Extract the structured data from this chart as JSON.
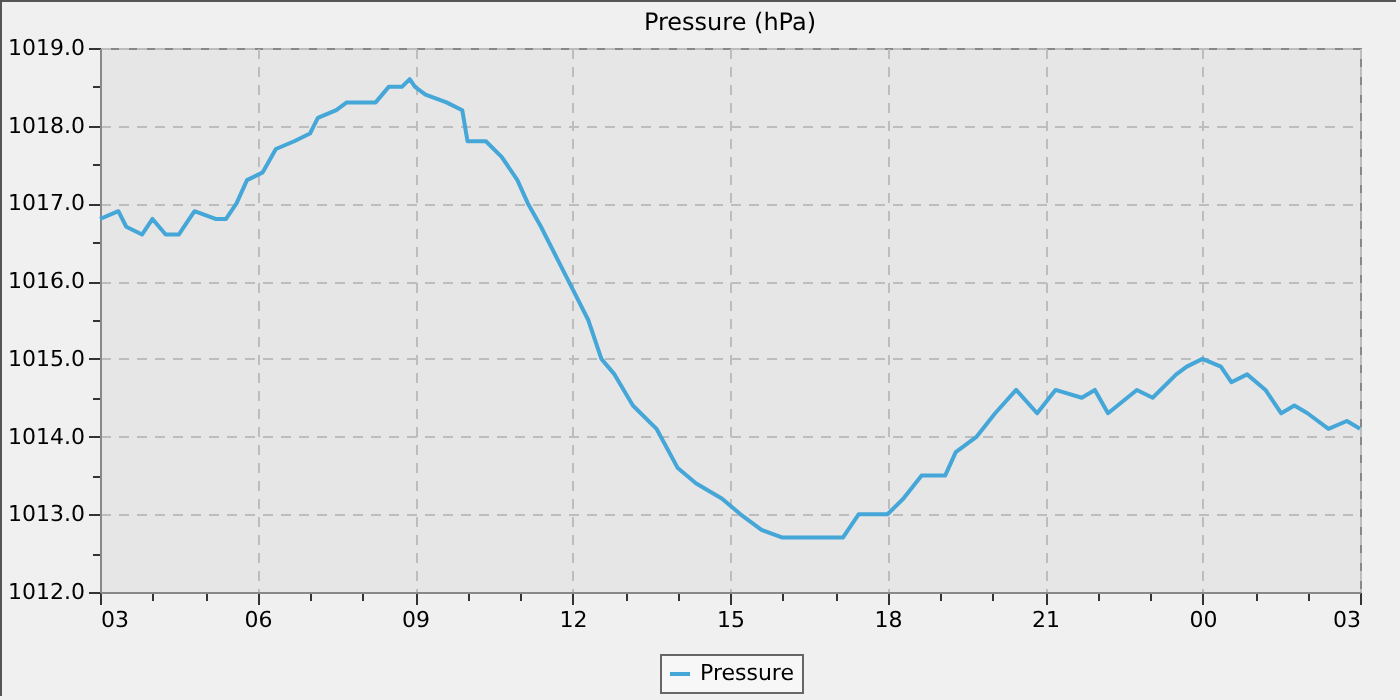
{
  "chart_data": {
    "type": "line",
    "title": "Pressure (hPa)",
    "grid": true,
    "legend": "bottom",
    "xlim": [
      3,
      27
    ],
    "ylim": [
      1012,
      1019
    ],
    "xticks": [
      {
        "value": 3,
        "label": "03"
      },
      {
        "value": 4,
        "label": null
      },
      {
        "value": 5,
        "label": null
      },
      {
        "value": 6,
        "label": "06"
      },
      {
        "value": 7,
        "label": null
      },
      {
        "value": 8,
        "label": null
      },
      {
        "value": 9,
        "label": "09"
      },
      {
        "value": 10,
        "label": null
      },
      {
        "value": 11,
        "label": null
      },
      {
        "value": 12,
        "label": "12"
      },
      {
        "value": 13,
        "label": null
      },
      {
        "value": 14,
        "label": null
      },
      {
        "value": 15,
        "label": "15"
      },
      {
        "value": 16,
        "label": null
      },
      {
        "value": 17,
        "label": null
      },
      {
        "value": 18,
        "label": "18"
      },
      {
        "value": 19,
        "label": null
      },
      {
        "value": 20,
        "label": null
      },
      {
        "value": 21,
        "label": "21"
      },
      {
        "value": 22,
        "label": null
      },
      {
        "value": 23,
        "label": null
      },
      {
        "value": 24,
        "label": "00"
      },
      {
        "value": 25,
        "label": null
      },
      {
        "value": 26,
        "label": null
      },
      {
        "value": 27,
        "label": "03"
      }
    ],
    "yticks": [
      {
        "value": 1012,
        "label": "1012.0"
      },
      {
        "value": 1012.5,
        "label": null
      },
      {
        "value": 1013,
        "label": "1013.0"
      },
      {
        "value": 1013.5,
        "label": null
      },
      {
        "value": 1014,
        "label": "1014.0"
      },
      {
        "value": 1014.5,
        "label": null
      },
      {
        "value": 1015,
        "label": "1015.0"
      },
      {
        "value": 1015.5,
        "label": null
      },
      {
        "value": 1016,
        "label": "1016.0"
      },
      {
        "value": 1016.5,
        "label": null
      },
      {
        "value": 1017,
        "label": "1017.0"
      },
      {
        "value": 1017.5,
        "label": null
      },
      {
        "value": 1018,
        "label": "1018.0"
      },
      {
        "value": 1018.5,
        "label": null
      },
      {
        "value": 1019,
        "label": "1019.0"
      }
    ],
    "x": [
      3,
      3.35,
      3.5,
      3.8,
      4.0,
      4.25,
      4.5,
      4.8,
      5.2,
      5.4,
      5.6,
      5.8,
      6.1,
      6.35,
      6.7,
      7.0,
      7.15,
      7.5,
      7.7,
      8.25,
      8.5,
      8.75,
      8.9,
      9.0,
      9.2,
      9.6,
      9.9,
      10.0,
      10.35,
      10.65,
      10.95,
      11.15,
      11.4,
      11.7,
      12.0,
      12.3,
      12.55,
      12.8,
      13.15,
      13.6,
      14.0,
      14.35,
      14.85,
      15.2,
      15.6,
      16.0,
      16.7,
      17.15,
      17.45,
      18.0,
      18.3,
      18.65,
      19.1,
      19.3,
      19.7,
      20.05,
      20.45,
      20.85,
      21.2,
      21.7,
      21.95,
      22.2,
      22.75,
      23.05,
      23.5,
      23.7,
      24.0,
      24.35,
      24.55,
      24.85,
      25.2,
      25.5,
      25.75,
      26.0,
      26.4,
      26.75,
      27.0
    ],
    "series": [
      {
        "name": "Pressure",
        "color": "#45a6d8",
        "values": [
          1016.8,
          1016.9,
          1016.7,
          1016.6,
          1016.8,
          1016.6,
          1016.6,
          1016.9,
          1016.8,
          1016.8,
          1017.0,
          1017.3,
          1017.4,
          1017.7,
          1017.8,
          1017.9,
          1018.1,
          1018.2,
          1018.3,
          1018.3,
          1018.5,
          1018.5,
          1018.6,
          1018.5,
          1018.4,
          1018.3,
          1018.2,
          1017.8,
          1017.8,
          1017.6,
          1017.3,
          1017.0,
          1016.7,
          1016.3,
          1015.9,
          1015.5,
          1015.0,
          1014.8,
          1014.4,
          1014.1,
          1013.6,
          1013.4,
          1013.2,
          1013.0,
          1012.8,
          1012.7,
          1012.7,
          1012.7,
          1013.0,
          1013.0,
          1013.2,
          1013.5,
          1013.5,
          1013.8,
          1014.0,
          1014.3,
          1014.6,
          1014.3,
          1014.6,
          1014.5,
          1014.6,
          1014.3,
          1014.6,
          1014.5,
          1014.8,
          1014.9,
          1015.0,
          1014.9,
          1014.7,
          1014.8,
          1014.6,
          1014.3,
          1014.4,
          1014.3,
          1014.1,
          1014.2,
          1014.1
        ]
      }
    ]
  }
}
